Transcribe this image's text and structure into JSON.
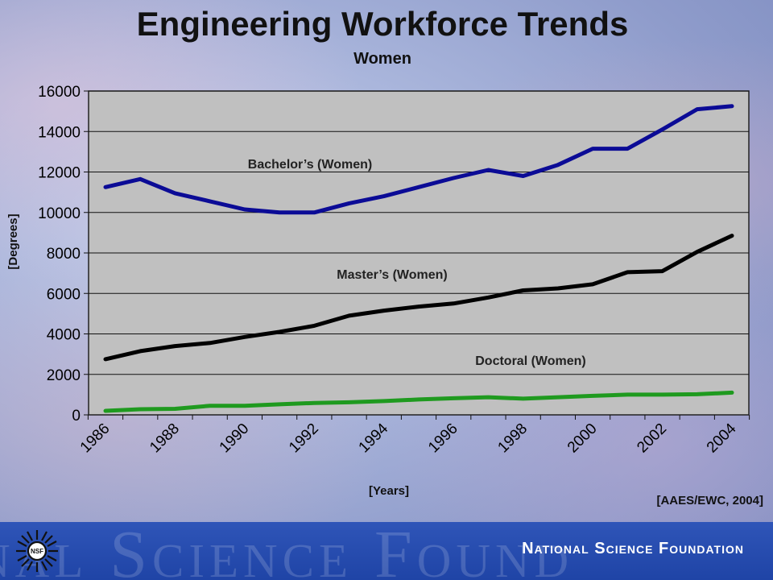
{
  "header": {
    "title": "Engineering Workforce Trends",
    "subtitle": "Women"
  },
  "source_note": "[AAES/EWC, 2004]",
  "footer": {
    "org_name": "National Science Foundation",
    "watermark_text": "nal Science Found",
    "logo_text": "NSF"
  },
  "chart_data": {
    "type": "line",
    "x": [
      1986,
      1987,
      1988,
      1989,
      1990,
      1991,
      1992,
      1993,
      1994,
      1995,
      1996,
      1997,
      1998,
      1999,
      2000,
      2001,
      2002,
      2003,
      2004
    ],
    "xticks": [
      1986,
      1988,
      1990,
      1992,
      1994,
      1996,
      1998,
      2000,
      2002,
      2004
    ],
    "yticks": [
      0,
      2000,
      4000,
      6000,
      8000,
      10000,
      12000,
      14000,
      16000
    ],
    "ylim": [
      0,
      16000
    ],
    "xlabel": "[Years]",
    "ylabel": "[Degrees]",
    "grid": "horizontal",
    "series": [
      {
        "name": "Bachelor’s (Women)",
        "color": "#0b0b96",
        "values": [
          11250,
          11650,
          10950,
          10550,
          10150,
          10000,
          10000,
          10450,
          10800,
          11250,
          11700,
          12100,
          11800,
          12350,
          13150,
          13150,
          14100,
          15100,
          15250
        ]
      },
      {
        "name": "Master’s (Women)",
        "color": "#000000",
        "values": [
          2750,
          3150,
          3400,
          3550,
          3850,
          4100,
          4400,
          4900,
          5150,
          5350,
          5500,
          5800,
          6150,
          6250,
          6450,
          7050,
          7100,
          8050,
          8850
        ]
      },
      {
        "name": "Doctoral (Women)",
        "color": "#1f9a1f",
        "values": [
          200,
          280,
          300,
          450,
          450,
          520,
          590,
          620,
          680,
          760,
          820,
          870,
          800,
          870,
          940,
          1000,
          1000,
          1020,
          1100
        ]
      }
    ]
  }
}
